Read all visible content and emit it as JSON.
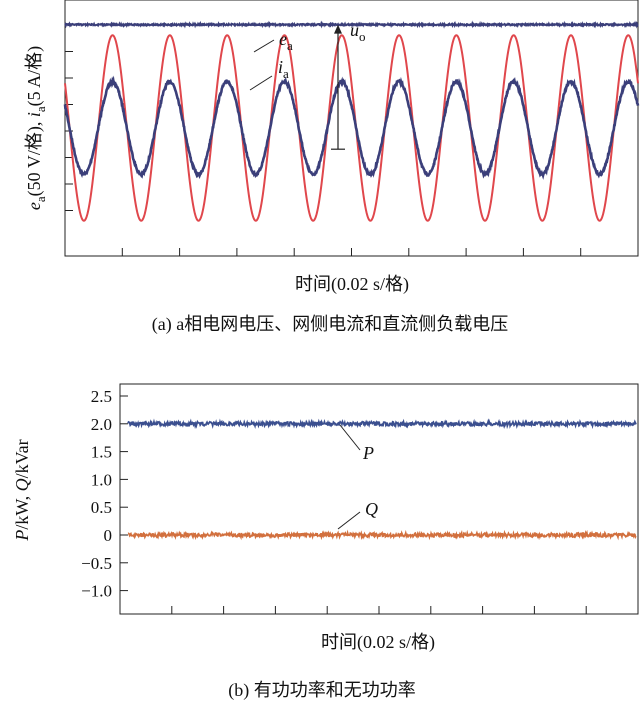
{
  "chart_data": [
    {
      "type": "line",
      "panel": "a",
      "caption": "(a) a相电网电压、网侧电流和直流侧负载电压",
      "xlabel": "时间(0.02 s/格)",
      "ylabel_parts": {
        "e": "e",
        "sub_a1": "a",
        "mid": "(50 V/格), ",
        "i": "i",
        "sub_a2": "a",
        "end": "(5 A/格)"
      },
      "x_grid_divisions": 10,
      "y_grid_divisions": 8,
      "cycles_shown": 10,
      "series": [
        {
          "key": "ea",
          "label_main": "e",
          "label_sub": "a",
          "color": "#e0474c",
          "amplitude_div": 3.5,
          "offset_div": 0,
          "wave": "sine"
        },
        {
          "key": "ia",
          "label_main": "i",
          "label_sub": "a",
          "color": "#3b3f7a",
          "amplitude_div": 1.75,
          "offset_div": 0,
          "wave": "sine"
        },
        {
          "key": "uo",
          "label_main": "u",
          "label_sub": "o",
          "color": "#3b3f7a",
          "level_div": 3.9,
          "wave": "dc"
        }
      ],
      "arrow": {
        "from_div": -0.8,
        "to_div": 3.9
      }
    },
    {
      "type": "line",
      "panel": "b",
      "caption": "(b) 有功功率和无功功率",
      "xlabel": "时间(0.02 s/格)",
      "ylabel_parts": {
        "p": "P",
        "mid": "/kW, ",
        "q": "Q",
        "end": "/kVar"
      },
      "ylim": [
        -1.25,
        2.5
      ],
      "yticks": [
        2.5,
        2.0,
        1.5,
        1.0,
        0.5,
        0,
        -0.5,
        -1.0
      ],
      "ytick_labels": [
        "2.5",
        "2.0",
        "1.5",
        "1.0",
        "0.5",
        "0",
        "−0.5",
        "−1.0"
      ],
      "x_grid_divisions": 10,
      "series": [
        {
          "name": "P",
          "color": "#3b4f8f",
          "level": 2.0
        },
        {
          "name": "Q",
          "color": "#d2703e",
          "level": 0.0
        }
      ]
    }
  ]
}
